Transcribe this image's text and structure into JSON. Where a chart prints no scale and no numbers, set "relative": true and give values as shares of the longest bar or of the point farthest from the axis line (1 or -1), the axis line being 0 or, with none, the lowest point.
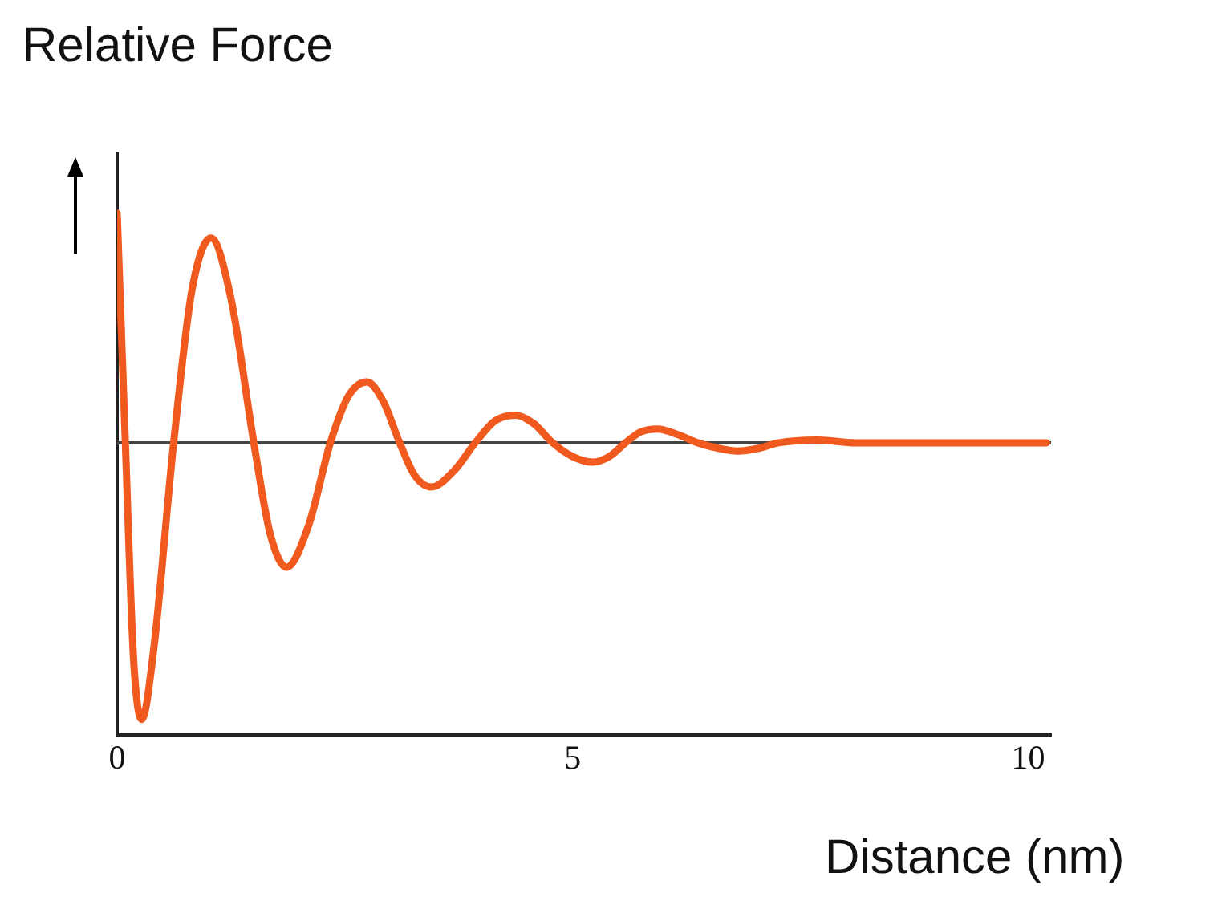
{
  "chart_data": {
    "type": "line",
    "relative": true,
    "ylabel": "Relative Force",
    "xlabel": "Distance (nm)",
    "x": [
      0,
      0.09,
      0.18,
      0.27,
      0.4,
      0.62,
      0.82,
      1.03,
      1.25,
      1.5,
      1.68,
      1.86,
      2.1,
      2.34,
      2.54,
      2.74,
      2.92,
      3.1,
      3.27,
      3.45,
      3.7,
      3.93,
      4.15,
      4.37,
      4.57,
      4.78,
      5.0,
      5.22,
      5.4,
      5.58,
      5.75,
      5.93,
      6.15,
      6.37,
      6.6,
      6.81,
      7.04,
      7.26,
      7.7,
      8.1,
      8.58,
      9.2,
      10.2
    ],
    "series": [
      {
        "color": "#f05a1e",
        "values": [
          0.83,
          0,
          -0.78,
          -1,
          -0.75,
          0,
          0.55,
          0.74,
          0.52,
          0,
          -0.33,
          -0.45,
          -0.3,
          0,
          0.17,
          0.22,
          0.15,
          0,
          -0.12,
          -0.16,
          -0.1,
          0,
          0.08,
          0.1,
          0.07,
          0,
          -0.05,
          -0.07,
          -0.05,
          0,
          0.04,
          0.05,
          0.03,
          0,
          -0.02,
          -0.03,
          -0.02,
          0,
          0.01,
          0,
          0,
          0,
          0
        ]
      }
    ],
    "xlim": [
      0,
      10.25
    ],
    "xticks": [
      0,
      5,
      10
    ],
    "grid": false,
    "tick_labels": "x",
    "marker": "none",
    "line_style": "solid"
  }
}
